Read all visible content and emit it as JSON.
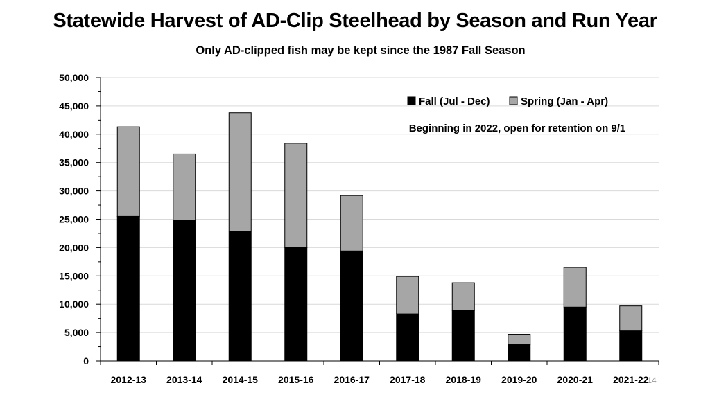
{
  "chart_data": {
    "type": "bar",
    "stacked": true,
    "title": "Statewide Harvest of AD-Clip Steelhead by Season and Run Year",
    "subtitle": "Only AD-clipped fish may be kept since the 1987 Fall Season",
    "categories": [
      "2012-13",
      "2013-14",
      "2014-15",
      "2015-16",
      "2016-17",
      "2017-18",
      "2018-19",
      "2019-20",
      "2020-21",
      "2021-22"
    ],
    "series": [
      {
        "name": "Fall (Jul - Dec)",
        "color": "#000000",
        "values": [
          25500,
          24800,
          22900,
          20000,
          19400,
          8300,
          8900,
          2900,
          9500,
          5300
        ]
      },
      {
        "name": "Spring (Jan - Apr)",
        "color": "#a6a6a6",
        "values": [
          15800,
          11700,
          20900,
          18400,
          9800,
          6600,
          4900,
          1800,
          7000,
          4400
        ]
      }
    ],
    "ylim": [
      0,
      50000
    ],
    "yticks": [
      "0",
      "5,000",
      "10,000",
      "15,000",
      "20,000",
      "25,000",
      "30,000",
      "35,000",
      "40,000",
      "45,000",
      "50,000"
    ],
    "ytick_values": [
      0,
      5000,
      10000,
      15000,
      20000,
      25000,
      30000,
      35000,
      40000,
      45000,
      50000
    ],
    "xlabel": "",
    "ylabel": "",
    "grid": true,
    "legend_position": "top-right",
    "annotation": "Beginning in 2022, open for retention on 9/1"
  },
  "slide_number": "14"
}
